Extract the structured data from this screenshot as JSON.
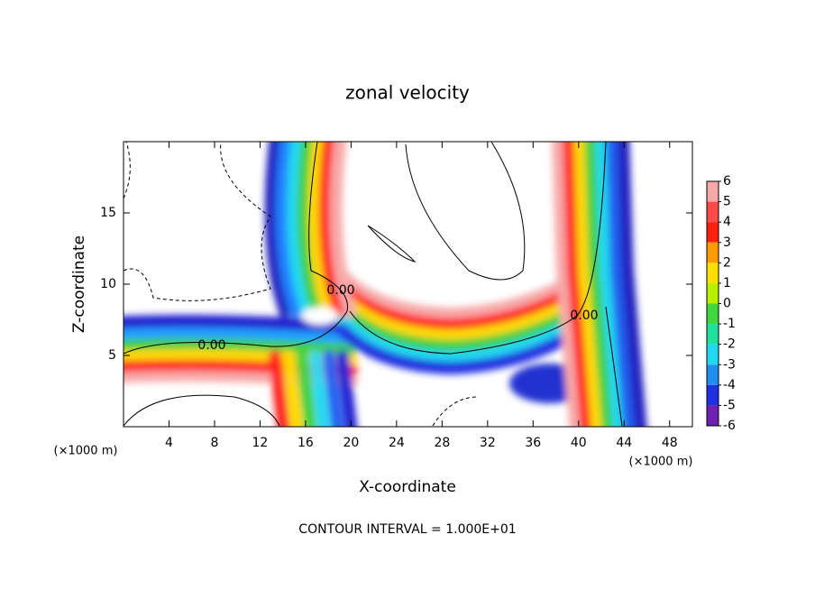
{
  "chart_data": {
    "type": "contour",
    "title": "zonal velocity",
    "x_label": "X-coordinate",
    "y_label": "Z-coordinate",
    "x_unit_label": "(×1000 m)",
    "footer": "CONTOUR INTERVAL = 1.000E+01",
    "contour_labels": [
      "0.00",
      "0.00",
      "0.00"
    ],
    "xlim": [
      0,
      50
    ],
    "xticks": [
      4,
      8,
      12,
      16,
      20,
      24,
      28,
      32,
      36,
      40,
      44,
      48
    ],
    "ylim": [
      0,
      20
    ],
    "yticks": [
      5,
      10,
      15
    ],
    "colorbar": {
      "levels": [
        6,
        5,
        4,
        3,
        2,
        1,
        0,
        -1,
        -2,
        -3,
        -4,
        -5,
        -6
      ],
      "colors": [
        "#f7a8a8",
        "#ff4a4a",
        "#ff2010",
        "#ff9a00",
        "#ffe000",
        "#b8f000",
        "#40d840",
        "#20e0a0",
        "#20d8f0",
        "#2090f0",
        "#2030e0",
        "#7020b0"
      ]
    }
  }
}
